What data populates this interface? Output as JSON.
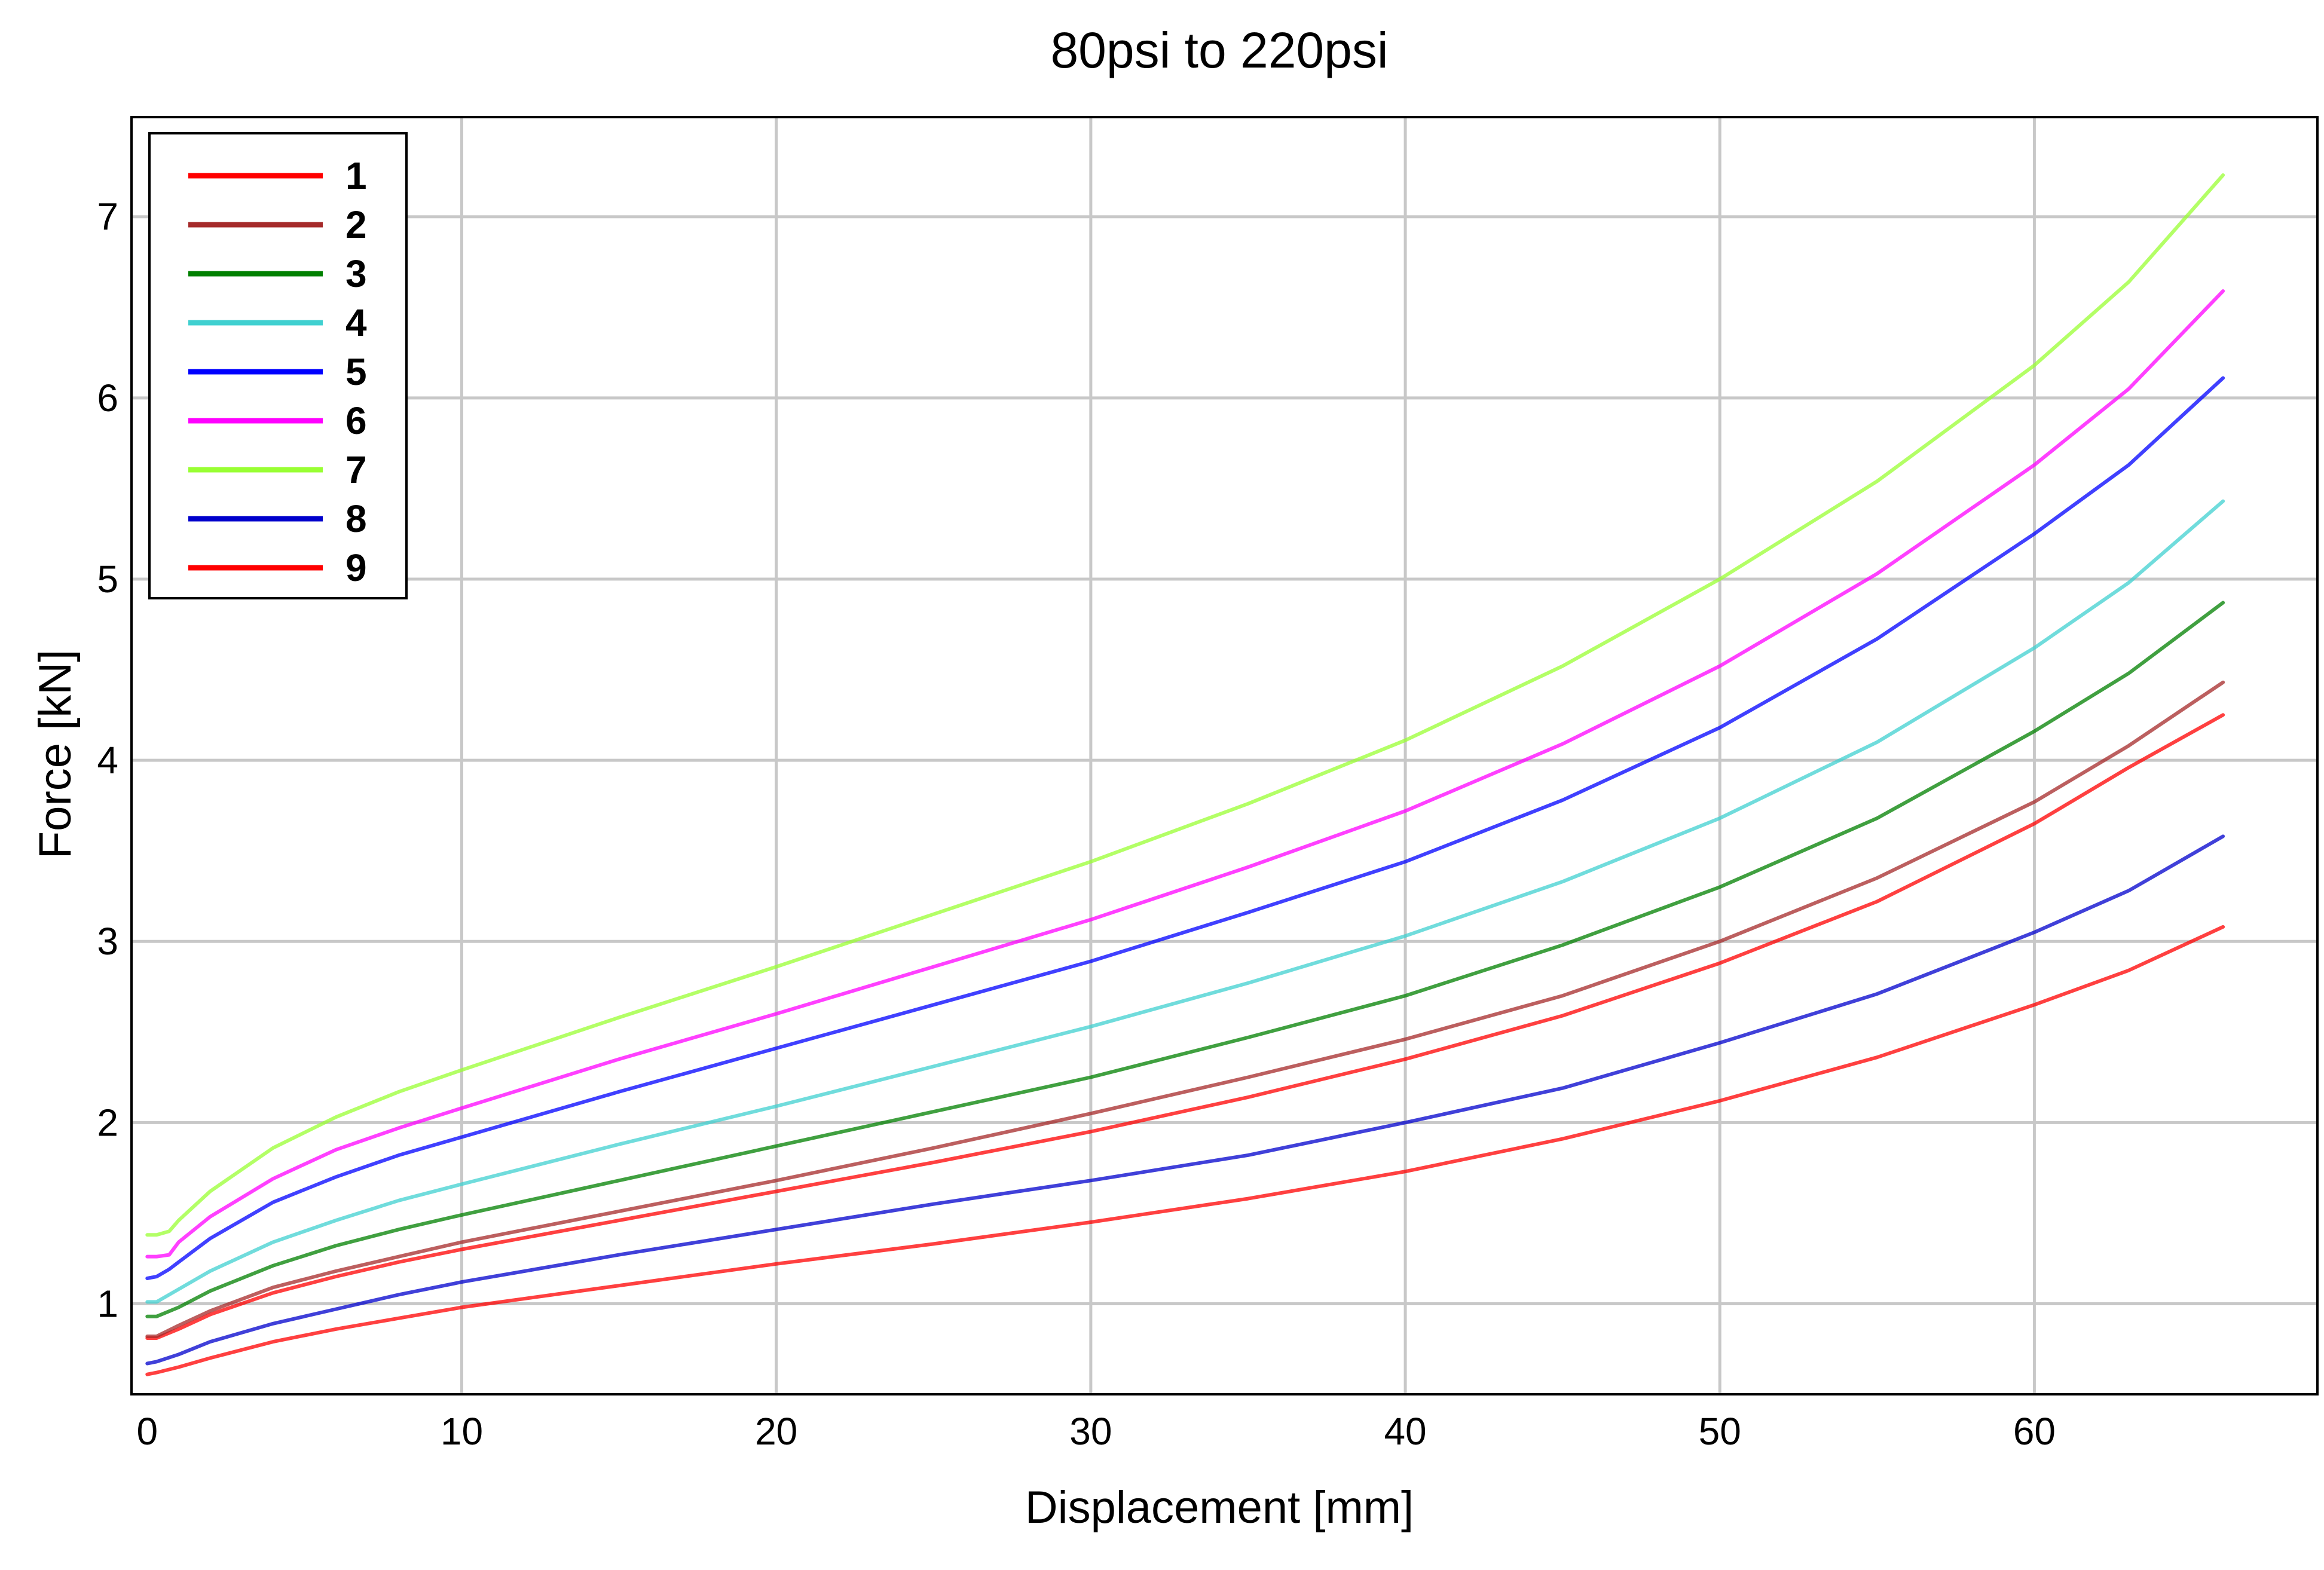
{
  "chart_data": {
    "type": "line",
    "title": "80psi to 220psi",
    "xlabel": "Displacement [mm]",
    "ylabel": "Force [kN]",
    "xlim": [
      -0.5,
      69
    ],
    "ylim": [
      0.5,
      7.55
    ],
    "xticks": [
      0,
      10,
      20,
      30,
      40,
      50,
      60
    ],
    "yticks": [
      1,
      2,
      3,
      4,
      5,
      6,
      7
    ],
    "grid": true,
    "legend_position": "top-left",
    "series": [
      {
        "name": "1",
        "color": "#ff0000",
        "points": [
          [
            0,
            0.81
          ],
          [
            0.3,
            0.81
          ],
          [
            1,
            0.86
          ],
          [
            2,
            0.94
          ],
          [
            4,
            1.06
          ],
          [
            6,
            1.15
          ],
          [
            8,
            1.23
          ],
          [
            10,
            1.3
          ],
          [
            15,
            1.46
          ],
          [
            20,
            1.62
          ],
          [
            25,
            1.78
          ],
          [
            30,
            1.95
          ],
          [
            35,
            2.14
          ],
          [
            40,
            2.35
          ],
          [
            45,
            2.59
          ],
          [
            50,
            2.88
          ],
          [
            55,
            3.22
          ],
          [
            60,
            3.65
          ],
          [
            63,
            3.96
          ],
          [
            66,
            4.25
          ]
        ]
      },
      {
        "name": "2",
        "color": "#a52a2a",
        "points": [
          [
            0,
            0.82
          ],
          [
            0.3,
            0.82
          ],
          [
            1,
            0.88
          ],
          [
            2,
            0.96
          ],
          [
            4,
            1.09
          ],
          [
            6,
            1.18
          ],
          [
            8,
            1.26
          ],
          [
            10,
            1.34
          ],
          [
            15,
            1.51
          ],
          [
            20,
            1.68
          ],
          [
            25,
            1.86
          ],
          [
            30,
            2.05
          ],
          [
            35,
            2.25
          ],
          [
            40,
            2.46
          ],
          [
            45,
            2.7
          ],
          [
            50,
            3.0
          ],
          [
            55,
            3.35
          ],
          [
            60,
            3.77
          ],
          [
            63,
            4.08
          ],
          [
            66,
            4.43
          ]
        ]
      },
      {
        "name": "3",
        "color": "#008000",
        "points": [
          [
            0,
            0.93
          ],
          [
            0.3,
            0.93
          ],
          [
            1,
            0.98
          ],
          [
            2,
            1.07
          ],
          [
            4,
            1.21
          ],
          [
            6,
            1.32
          ],
          [
            8,
            1.41
          ],
          [
            10,
            1.49
          ],
          [
            15,
            1.68
          ],
          [
            20,
            1.87
          ],
          [
            25,
            2.06
          ],
          [
            30,
            2.25
          ],
          [
            35,
            2.47
          ],
          [
            40,
            2.7
          ],
          [
            45,
            2.98
          ],
          [
            50,
            3.3
          ],
          [
            55,
            3.68
          ],
          [
            60,
            4.16
          ],
          [
            63,
            4.48
          ],
          [
            66,
            4.87
          ]
        ]
      },
      {
        "name": "4",
        "color": "#40d0d0",
        "points": [
          [
            0,
            1.01
          ],
          [
            0.3,
            1.01
          ],
          [
            1,
            1.08
          ],
          [
            2,
            1.18
          ],
          [
            4,
            1.34
          ],
          [
            6,
            1.46
          ],
          [
            8,
            1.57
          ],
          [
            10,
            1.66
          ],
          [
            15,
            1.88
          ],
          [
            20,
            2.09
          ],
          [
            25,
            2.31
          ],
          [
            30,
            2.53
          ],
          [
            35,
            2.77
          ],
          [
            40,
            3.03
          ],
          [
            45,
            3.33
          ],
          [
            50,
            3.68
          ],
          [
            55,
            4.1
          ],
          [
            60,
            4.62
          ],
          [
            63,
            4.98
          ],
          [
            66,
            5.43
          ]
        ]
      },
      {
        "name": "5",
        "color": "#0000ff",
        "points": [
          [
            0,
            1.14
          ],
          [
            0.3,
            1.15
          ],
          [
            0.7,
            1.19
          ],
          [
            1,
            1.23
          ],
          [
            2,
            1.36
          ],
          [
            4,
            1.56
          ],
          [
            6,
            1.7
          ],
          [
            8,
            1.82
          ],
          [
            10,
            1.92
          ],
          [
            15,
            2.17
          ],
          [
            20,
            2.41
          ],
          [
            25,
            2.65
          ],
          [
            30,
            2.89
          ],
          [
            35,
            3.16
          ],
          [
            40,
            3.44
          ],
          [
            45,
            3.78
          ],
          [
            50,
            4.18
          ],
          [
            55,
            4.67
          ],
          [
            60,
            5.25
          ],
          [
            63,
            5.63
          ],
          [
            66,
            6.11
          ]
        ]
      },
      {
        "name": "6",
        "color": "#ff00ff",
        "points": [
          [
            0,
            1.26
          ],
          [
            0.3,
            1.26
          ],
          [
            0.7,
            1.27
          ],
          [
            1,
            1.34
          ],
          [
            2,
            1.48
          ],
          [
            4,
            1.69
          ],
          [
            6,
            1.85
          ],
          [
            8,
            1.97
          ],
          [
            10,
            2.08
          ],
          [
            15,
            2.35
          ],
          [
            20,
            2.6
          ],
          [
            25,
            2.86
          ],
          [
            30,
            3.12
          ],
          [
            35,
            3.41
          ],
          [
            40,
            3.72
          ],
          [
            45,
            4.09
          ],
          [
            50,
            4.52
          ],
          [
            55,
            5.03
          ],
          [
            60,
            5.63
          ],
          [
            63,
            6.05
          ],
          [
            66,
            6.59
          ]
        ]
      },
      {
        "name": "7",
        "color": "#99ff33",
        "points": [
          [
            0,
            1.38
          ],
          [
            0.3,
            1.38
          ],
          [
            0.7,
            1.4
          ],
          [
            1,
            1.46
          ],
          [
            2,
            1.62
          ],
          [
            4,
            1.86
          ],
          [
            6,
            2.03
          ],
          [
            8,
            2.17
          ],
          [
            10,
            2.29
          ],
          [
            15,
            2.58
          ],
          [
            20,
            2.86
          ],
          [
            25,
            3.15
          ],
          [
            30,
            3.44
          ],
          [
            35,
            3.76
          ],
          [
            40,
            4.11
          ],
          [
            45,
            4.52
          ],
          [
            50,
            5.0
          ],
          [
            55,
            5.54
          ],
          [
            60,
            6.18
          ],
          [
            63,
            6.64
          ],
          [
            66,
            7.23
          ]
        ]
      },
      {
        "name": "8",
        "color": "#0000cc",
        "points": [
          [
            0,
            0.67
          ],
          [
            0.3,
            0.68
          ],
          [
            1,
            0.72
          ],
          [
            2,
            0.79
          ],
          [
            4,
            0.89
          ],
          [
            6,
            0.97
          ],
          [
            8,
            1.05
          ],
          [
            10,
            1.12
          ],
          [
            15,
            1.27
          ],
          [
            20,
            1.41
          ],
          [
            25,
            1.55
          ],
          [
            30,
            1.68
          ],
          [
            35,
            1.82
          ],
          [
            40,
            2.0
          ],
          [
            45,
            2.19
          ],
          [
            50,
            2.44
          ],
          [
            55,
            2.71
          ],
          [
            60,
            3.05
          ],
          [
            63,
            3.28
          ],
          [
            66,
            3.58
          ]
        ]
      },
      {
        "name": "9",
        "color": "#ff0000",
        "points": [
          [
            0,
            0.61
          ],
          [
            0.3,
            0.62
          ],
          [
            1,
            0.65
          ],
          [
            2,
            0.7
          ],
          [
            4,
            0.79
          ],
          [
            6,
            0.86
          ],
          [
            8,
            0.92
          ],
          [
            10,
            0.98
          ],
          [
            15,
            1.1
          ],
          [
            20,
            1.22
          ],
          [
            25,
            1.33
          ],
          [
            30,
            1.45
          ],
          [
            35,
            1.58
          ],
          [
            40,
            1.73
          ],
          [
            45,
            1.91
          ],
          [
            50,
            2.12
          ],
          [
            55,
            2.36
          ],
          [
            60,
            2.65
          ],
          [
            63,
            2.84
          ],
          [
            66,
            3.08
          ]
        ]
      }
    ]
  }
}
